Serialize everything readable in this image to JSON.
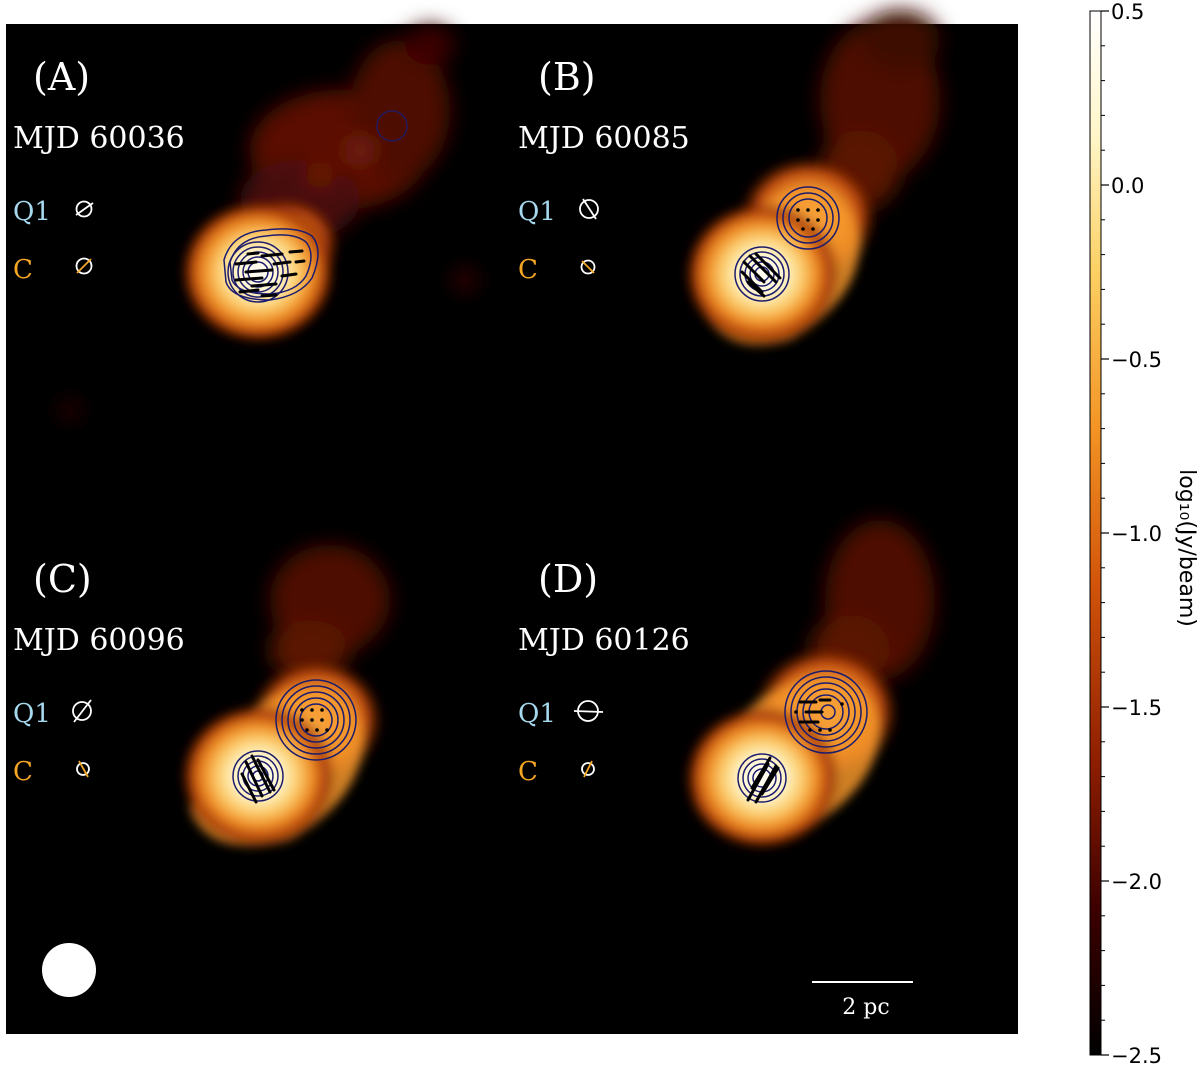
{
  "panels": [
    {
      "letter": "(A)",
      "mjd": "MJD 60036",
      "label_q1": "Q1",
      "label_c": "C"
    },
    {
      "letter": "(B)",
      "mjd": "MJD 60085",
      "label_q1": "Q1",
      "label_c": "C"
    },
    {
      "letter": "(C)",
      "mjd": "MJD 60096",
      "label_q1": "Q1",
      "label_c": "C"
    },
    {
      "letter": "(D)",
      "mjd": "MJD 60126",
      "label_q1": "Q1",
      "label_c": "C"
    }
  ],
  "scalebar": {
    "label": "2 pc"
  },
  "colorbar": {
    "label": "log₁₀(Jy/beam)",
    "ticks": [
      "0.5",
      "0.0",
      "−0.5",
      "−1.0",
      "−1.5",
      "−2.0",
      "−2.5"
    ],
    "colors": [
      "#000000",
      "#3d0000",
      "#8e1e00",
      "#d2540a",
      "#f39424",
      "#fcd063",
      "#fff6c8",
      "#ffffff"
    ]
  },
  "colors": {
    "q1_label": "#a6d8ee",
    "c_label": "#f5a623",
    "contour": "#1c1c6e",
    "background": "#000000"
  }
}
